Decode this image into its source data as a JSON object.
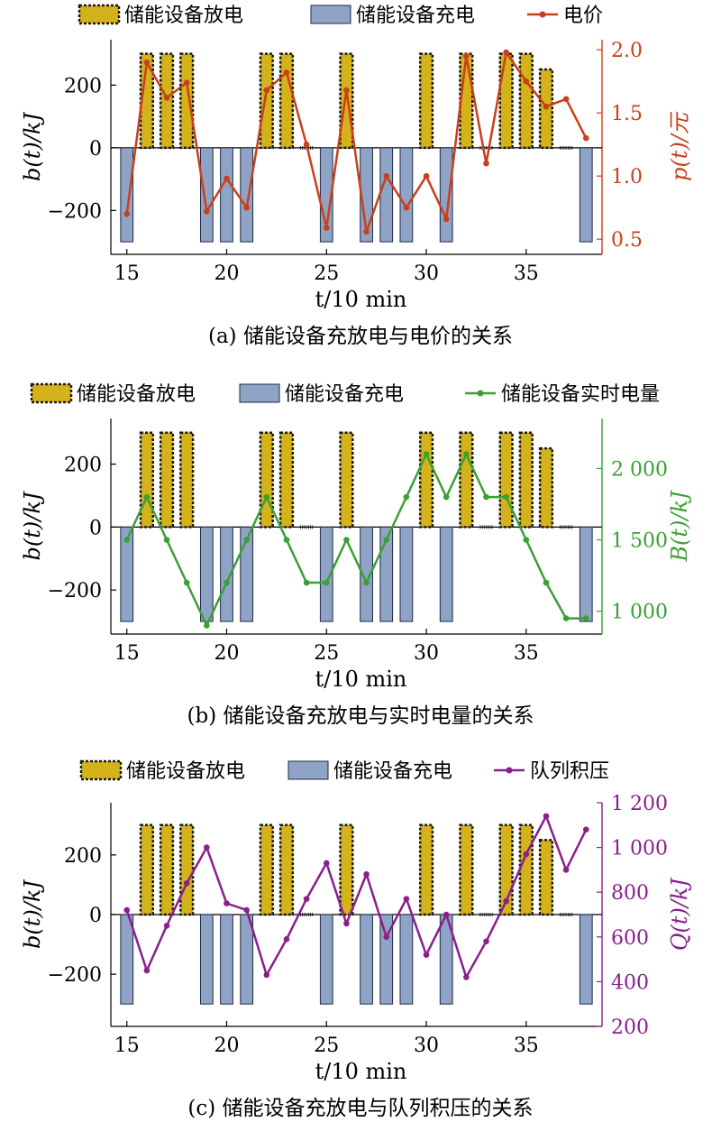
{
  "colors": {
    "discharge": "#d4b21c",
    "discharge_border": "#1a1a1a",
    "charge": "#8ea3c6",
    "charge_border": "#1f2a44",
    "price": "#c8401b",
    "energy": "#3aa035",
    "queue": "#8a1f8c",
    "axis": "#000000"
  },
  "chart_data": [
    {
      "type": "bar+line",
      "caption": "(a) 储能设备充放电与电价的关系",
      "legend": [
        "储能设备放电",
        "储能设备充电",
        "电价"
      ],
      "xlabel": "t/10 min",
      "ylabel_left": "b(t)/kJ",
      "ylabel_right": "p(t)/元",
      "x_ticks": [
        15,
        20,
        25,
        30,
        35
      ],
      "y_left_ticks": [
        "200",
        "0",
        "−200"
      ],
      "y_right_ticks": [
        "2.0",
        "1.5",
        "1.0",
        "0.5"
      ],
      "xlim": [
        14.2,
        38.8
      ],
      "ylim_left": [
        -340,
        345
      ],
      "ylim_right": [
        0.38,
        2.08
      ],
      "bars": [
        {
          "x": 15,
          "value": -300
        },
        {
          "x": 16,
          "value": 300
        },
        {
          "x": 17,
          "value": 300
        },
        {
          "x": 18,
          "value": 300
        },
        {
          "x": 19,
          "value": -300
        },
        {
          "x": 20,
          "value": -300
        },
        {
          "x": 21,
          "value": -300
        },
        {
          "x": 22,
          "value": 300
        },
        {
          "x": 23,
          "value": 300
        },
        {
          "x": 24,
          "value": 0
        },
        {
          "x": 25,
          "value": -300
        },
        {
          "x": 26,
          "value": 300
        },
        {
          "x": 27,
          "value": -300
        },
        {
          "x": 28,
          "value": -300
        },
        {
          "x": 29,
          "value": -300
        },
        {
          "x": 30,
          "value": 300
        },
        {
          "x": 31,
          "value": -300
        },
        {
          "x": 32,
          "value": 300
        },
        {
          "x": 33,
          "value": 0
        },
        {
          "x": 34,
          "value": 300
        },
        {
          "x": 35,
          "value": 300
        },
        {
          "x": 36,
          "value": 250
        },
        {
          "x": 37,
          "value": 0
        },
        {
          "x": 38,
          "value": -300
        }
      ],
      "line": {
        "name": "电价",
        "x": [
          15,
          16,
          17,
          18,
          19,
          20,
          21,
          22,
          23,
          24,
          25,
          26,
          27,
          28,
          29,
          30,
          31,
          32,
          33,
          34,
          35,
          36,
          37,
          38
        ],
        "y": [
          0.7,
          1.9,
          1.62,
          1.74,
          0.72,
          0.98,
          0.75,
          1.68,
          1.82,
          1.25,
          0.59,
          1.68,
          0.56,
          1.0,
          0.75,
          1.0,
          0.66,
          1.95,
          1.1,
          1.98,
          1.75,
          1.55,
          1.61,
          1.3
        ]
      }
    },
    {
      "type": "bar+line",
      "caption": "(b) 储能设备充放电与实时电量的关系",
      "legend": [
        "储能设备放电",
        "储能设备充电",
        "储能设备实时电量"
      ],
      "xlabel": "t/10 min",
      "ylabel_left": "b(t)/kJ",
      "ylabel_right": "B(t)/kJ",
      "x_ticks": [
        15,
        20,
        25,
        30,
        35
      ],
      "y_left_ticks": [
        "200",
        "0",
        "−200"
      ],
      "y_right_ticks": [
        "2 000",
        "1 500",
        "1 000"
      ],
      "xlim": [
        14.2,
        38.8
      ],
      "ylim_left": [
        -340,
        345
      ],
      "ylim_right": [
        840,
        2350
      ],
      "bars": [
        {
          "x": 15,
          "value": -300
        },
        {
          "x": 16,
          "value": 300
        },
        {
          "x": 17,
          "value": 300
        },
        {
          "x": 18,
          "value": 300
        },
        {
          "x": 19,
          "value": -300
        },
        {
          "x": 20,
          "value": -300
        },
        {
          "x": 21,
          "value": -300
        },
        {
          "x": 22,
          "value": 300
        },
        {
          "x": 23,
          "value": 300
        },
        {
          "x": 24,
          "value": 0
        },
        {
          "x": 25,
          "value": -300
        },
        {
          "x": 26,
          "value": 300
        },
        {
          "x": 27,
          "value": -300
        },
        {
          "x": 28,
          "value": -300
        },
        {
          "x": 29,
          "value": -300
        },
        {
          "x": 30,
          "value": 300
        },
        {
          "x": 31,
          "value": -300
        },
        {
          "x": 32,
          "value": 300
        },
        {
          "x": 33,
          "value": 0
        },
        {
          "x": 34,
          "value": 300
        },
        {
          "x": 35,
          "value": 300
        },
        {
          "x": 36,
          "value": 250
        },
        {
          "x": 37,
          "value": 0
        },
        {
          "x": 38,
          "value": -300
        }
      ],
      "line": {
        "name": "储能设备实时电量",
        "x": [
          15,
          16,
          17,
          18,
          19,
          20,
          21,
          22,
          23,
          24,
          25,
          26,
          27,
          28,
          29,
          30,
          31,
          32,
          33,
          34,
          35,
          36,
          37,
          38
        ],
        "y": [
          1500,
          1800,
          1500,
          1200,
          900,
          1200,
          1500,
          1800,
          1500,
          1200,
          1200,
          1500,
          1200,
          1500,
          1800,
          2100,
          1800,
          2100,
          1800,
          1800,
          1500,
          1200,
          950,
          950
        ]
      }
    },
    {
      "type": "bar+line",
      "caption": "(c) 储能设备充放电与队列积压的关系",
      "legend": [
        "储能设备放电",
        "储能设备充电",
        "队列积压"
      ],
      "xlabel": "t/10 min",
      "ylabel_left": "b(t)/kJ",
      "ylabel_right": "Q(t)/kJ",
      "x_ticks": [
        15,
        20,
        25,
        30,
        35
      ],
      "y_left_ticks": [
        "200",
        "0",
        "−200"
      ],
      "y_right_ticks": [
        "1 200",
        "1 000",
        "800",
        "600",
        "400",
        "200"
      ],
      "xlim": [
        14.2,
        38.8
      ],
      "ylim_left": [
        -375,
        375
      ],
      "ylim_right": [
        200,
        1200
      ],
      "bars": [
        {
          "x": 15,
          "value": -300
        },
        {
          "x": 16,
          "value": 300
        },
        {
          "x": 17,
          "value": 300
        },
        {
          "x": 18,
          "value": 300
        },
        {
          "x": 19,
          "value": -300
        },
        {
          "x": 20,
          "value": -300
        },
        {
          "x": 21,
          "value": -300
        },
        {
          "x": 22,
          "value": 300
        },
        {
          "x": 23,
          "value": 300
        },
        {
          "x": 24,
          "value": 0
        },
        {
          "x": 25,
          "value": -300
        },
        {
          "x": 26,
          "value": 300
        },
        {
          "x": 27,
          "value": -300
        },
        {
          "x": 28,
          "value": -300
        },
        {
          "x": 29,
          "value": -300
        },
        {
          "x": 30,
          "value": 300
        },
        {
          "x": 31,
          "value": -300
        },
        {
          "x": 32,
          "value": 300
        },
        {
          "x": 33,
          "value": 0
        },
        {
          "x": 34,
          "value": 300
        },
        {
          "x": 35,
          "value": 300
        },
        {
          "x": 36,
          "value": 250
        },
        {
          "x": 37,
          "value": 0
        },
        {
          "x": 38,
          "value": -300
        }
      ],
      "line": {
        "name": "队列积压",
        "x": [
          15,
          16,
          17,
          18,
          19,
          20,
          21,
          22,
          23,
          24,
          25,
          26,
          27,
          28,
          29,
          30,
          31,
          32,
          33,
          34,
          35,
          36,
          37,
          38
        ],
        "y": [
          720,
          450,
          650,
          840,
          1000,
          750,
          720,
          430,
          590,
          770,
          930,
          660,
          880,
          600,
          770,
          520,
          700,
          420,
          580,
          760,
          970,
          1140,
          900,
          1080
        ]
      }
    }
  ]
}
